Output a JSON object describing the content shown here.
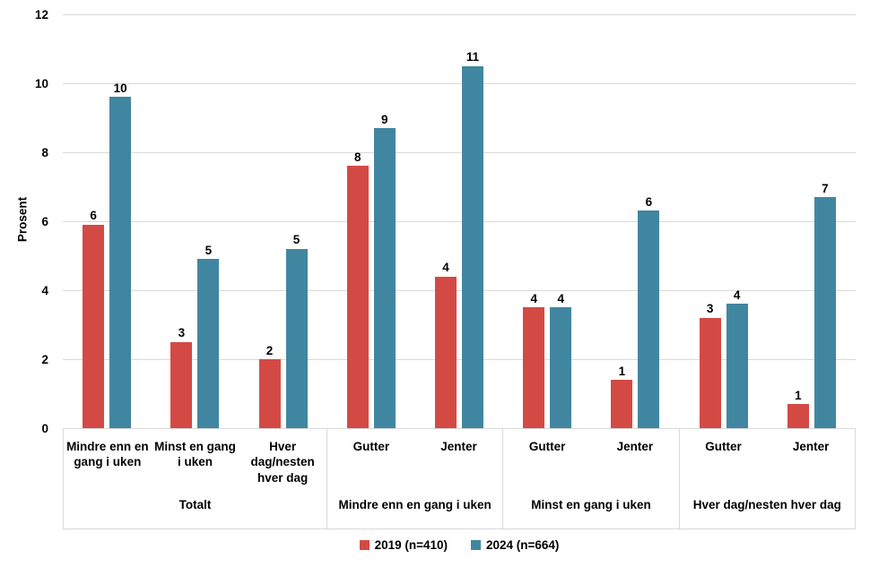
{
  "chart_data": {
    "type": "bar",
    "title": "",
    "xlabel": "",
    "ylabel": "Prosent",
    "ylim": [
      0,
      12
    ],
    "yticks": [
      0,
      2,
      4,
      6,
      8,
      10,
      12
    ],
    "grid": "horizontal",
    "legend_position": "bottom-center",
    "series": [
      {
        "key": "y2019",
        "name": "2019 (n=410)",
        "color": "#D34A45"
      },
      {
        "key": "y2024",
        "name": "2024 (n=664)",
        "color": "#4186A0"
      }
    ],
    "groups": [
      {
        "label": "Totalt",
        "items": [
          {
            "category": "Mindre enn en gang i uken",
            "y2019": {
              "value": 5.9,
              "label": "6"
            },
            "y2024": {
              "value": 9.6,
              "label": "10"
            }
          },
          {
            "category": "Minst en gang i uken",
            "y2019": {
              "value": 2.5,
              "label": "3"
            },
            "y2024": {
              "value": 4.9,
              "label": "5"
            }
          },
          {
            "category": "Hver dag/nesten hver dag",
            "y2019": {
              "value": 2.0,
              "label": "2"
            },
            "y2024": {
              "value": 5.2,
              "label": "5"
            }
          }
        ]
      },
      {
        "label": "Mindre enn en gang i uken",
        "items": [
          {
            "category": "Gutter",
            "y2019": {
              "value": 7.6,
              "label": "8"
            },
            "y2024": {
              "value": 8.7,
              "label": "9"
            }
          },
          {
            "category": "Jenter",
            "y2019": {
              "value": 4.4,
              "label": "4"
            },
            "y2024": {
              "value": 10.5,
              "label": "11"
            }
          }
        ]
      },
      {
        "label": "Minst en gang i uken",
        "items": [
          {
            "category": "Gutter",
            "y2019": {
              "value": 3.5,
              "label": "4"
            },
            "y2024": {
              "value": 3.5,
              "label": "4"
            }
          },
          {
            "category": "Jenter",
            "y2019": {
              "value": 1.4,
              "label": "1"
            },
            "y2024": {
              "value": 6.3,
              "label": "6"
            }
          }
        ]
      },
      {
        "label": "Hver dag/nesten hver dag",
        "items": [
          {
            "category": "Gutter",
            "y2019": {
              "value": 3.2,
              "label": "3"
            },
            "y2024": {
              "value": 3.6,
              "label": "4"
            }
          },
          {
            "category": "Jenter",
            "y2019": {
              "value": 0.7,
              "label": "1"
            },
            "y2024": {
              "value": 6.7,
              "label": "7"
            }
          }
        ]
      }
    ],
    "colors": {
      "grid": "#d9d9d9",
      "text": "#000000",
      "background": "#ffffff"
    }
  }
}
